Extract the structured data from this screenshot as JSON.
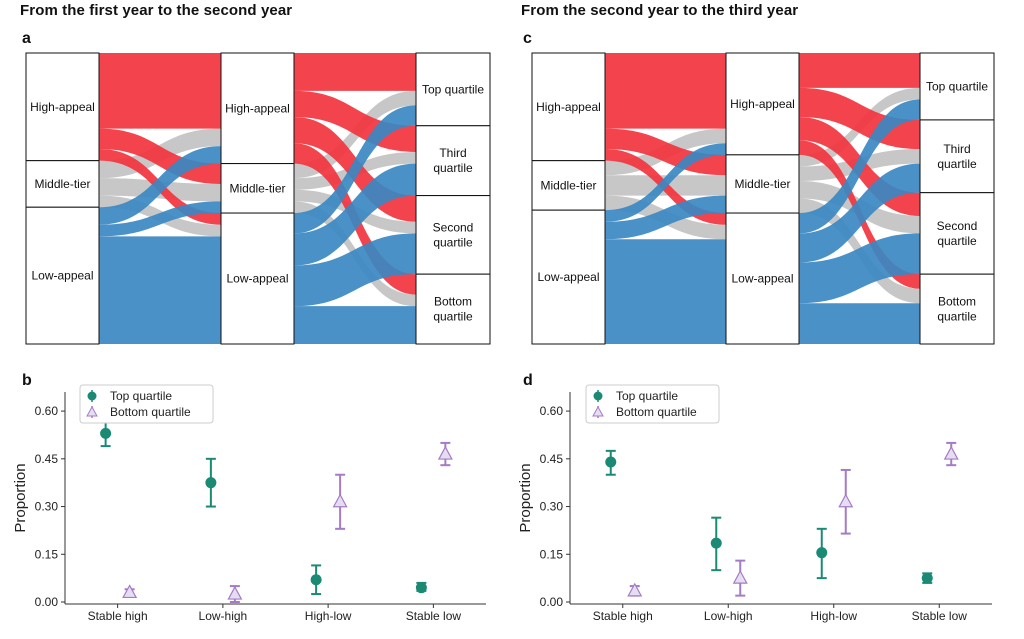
{
  "headers": {
    "left": "From the first year to the second year",
    "right": "From the second year to the third year"
  },
  "panel_labels": [
    "a",
    "c",
    "b",
    "d"
  ],
  "colors": {
    "high": "#F2333D",
    "middle": "#BDBDBD",
    "low": "#3A88C2",
    "top_marker": "#1B8A74",
    "bottom_marker": "#A47CC6"
  },
  "icons": [
    "circle-marker-icon",
    "triangle-marker-icon"
  ],
  "sankey": [
    {
      "id": "a",
      "col1": [
        {
          "key": "high",
          "label": "High-appeal",
          "weight": 37
        },
        {
          "key": "middle",
          "label": "Middle-tier",
          "weight": 16
        },
        {
          "key": "low",
          "label": "Low-appeal",
          "weight": 47
        }
      ],
      "col2": [
        {
          "key": "high",
          "label": "High-appeal",
          "weight": 38
        },
        {
          "key": "middle",
          "label": "Middle-tier",
          "weight": 17
        },
        {
          "key": "low",
          "label": "Low-appeal",
          "weight": 45
        }
      ],
      "col3": [
        {
          "label": "Top quartile",
          "weight": 25
        },
        {
          "label": "Third quartile",
          "weight": 24
        },
        {
          "label": "Second quartile",
          "weight": 27
        },
        {
          "label": "Bottom quartile",
          "weight": 24
        }
      ],
      "flows12": [
        [
          26,
          7,
          4
        ],
        [
          6,
          6,
          4
        ],
        [
          6,
          4,
          37
        ]
      ],
      "flows23": [
        [
          13,
          9,
          9,
          7
        ],
        [
          5,
          4,
          4,
          4
        ],
        [
          7,
          11,
          14,
          13
        ]
      ]
    },
    {
      "id": "c",
      "col1": [
        {
          "key": "high",
          "label": "High-appeal",
          "weight": 37
        },
        {
          "key": "middle",
          "label": "Middle-tier",
          "weight": 17
        },
        {
          "key": "low",
          "label": "Low-appeal",
          "weight": 46
        }
      ],
      "col2": [
        {
          "key": "high",
          "label": "High-appeal",
          "weight": 35
        },
        {
          "key": "middle",
          "label": "Middle-tier",
          "weight": 20
        },
        {
          "key": "low",
          "label": "Low-appeal",
          "weight": 45
        }
      ],
      "col3": [
        {
          "label": "Top quartile",
          "weight": 23
        },
        {
          "label": "Third quartile",
          "weight": 25
        },
        {
          "label": "Second quartile",
          "weight": 28
        },
        {
          "label": "Bottom quartile",
          "weight": 24
        }
      ],
      "flows12": [
        [
          26,
          7,
          4
        ],
        [
          5,
          7,
          5
        ],
        [
          4,
          6,
          36
        ]
      ],
      "flows23": [
        [
          12,
          10,
          8,
          5
        ],
        [
          4,
          5,
          6,
          5
        ],
        [
          7,
          10,
          14,
          14
        ]
      ]
    }
  ],
  "chart_data": [
    {
      "id": "b",
      "type": "scatter",
      "categories": [
        "Stable high",
        "Low-high",
        "High-low",
        "Stable low"
      ],
      "ylabel": "Proportion",
      "ylim": [
        0,
        0.66
      ],
      "yticks": [
        "0.00",
        "0.15",
        "0.30",
        "0.45",
        "0.60"
      ],
      "legend_position": "top-left",
      "series": [
        {
          "name": "Top quartile",
          "marker": "circle",
          "values": [
            0.53,
            0.375,
            0.07,
            0.045
          ],
          "err_low": [
            0.49,
            0.3,
            0.025,
            0.035
          ],
          "err_high": [
            0.57,
            0.45,
            0.115,
            0.06
          ]
        },
        {
          "name": "Bottom quartile",
          "marker": "triangle",
          "values": [
            0.03,
            0.025,
            0.315,
            0.465
          ],
          "err_low": [
            0.02,
            0.0,
            0.23,
            0.43
          ],
          "err_high": [
            0.04,
            0.05,
            0.4,
            0.5
          ]
        }
      ]
    },
    {
      "id": "d",
      "type": "scatter",
      "categories": [
        "Stable high",
        "Low-high",
        "High-low",
        "Stable low"
      ],
      "ylabel": "Proportion",
      "ylim": [
        0,
        0.66
      ],
      "yticks": [
        "0.00",
        "0.15",
        "0.30",
        "0.45",
        "0.60"
      ],
      "legend_position": "top-left",
      "series": [
        {
          "name": "Top quartile",
          "marker": "circle",
          "values": [
            0.44,
            0.185,
            0.155,
            0.075
          ],
          "err_low": [
            0.4,
            0.1,
            0.075,
            0.06
          ],
          "err_high": [
            0.475,
            0.265,
            0.23,
            0.09
          ]
        },
        {
          "name": "Bottom quartile",
          "marker": "triangle",
          "values": [
            0.035,
            0.075,
            0.315,
            0.465
          ],
          "err_low": [
            0.02,
            0.02,
            0.215,
            0.43
          ],
          "err_high": [
            0.05,
            0.13,
            0.415,
            0.5
          ]
        }
      ]
    }
  ]
}
